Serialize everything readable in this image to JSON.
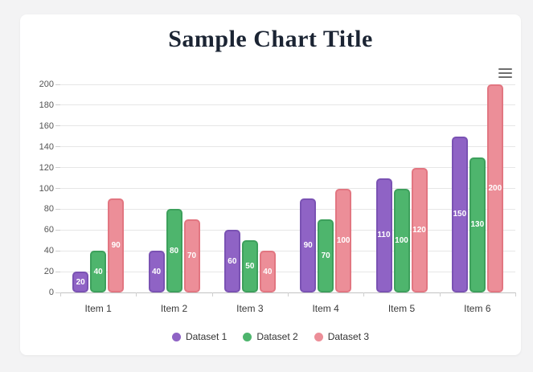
{
  "page": {
    "background": "#f3f3f4",
    "card_background": "#ffffff"
  },
  "header": {
    "title": "Sample Chart Title",
    "title_color": "#1b2433"
  },
  "menu": {
    "icon": "hamburger-menu-icon"
  },
  "chart_data": {
    "type": "bar",
    "title": "Sample Chart Title",
    "categories": [
      "Item 1",
      "Item 2",
      "Item 3",
      "Item 4",
      "Item 5",
      "Item 6"
    ],
    "series": [
      {
        "name": "Dataset 1",
        "values": [
          20,
          40,
          60,
          90,
          110,
          150
        ],
        "fill": "#8f63c5",
        "border": "#7a52b3"
      },
      {
        "name": "Dataset 2",
        "values": [
          40,
          80,
          50,
          70,
          100,
          130
        ],
        "fill": "#4eb56d",
        "border": "#3da05c"
      },
      {
        "name": "Dataset 3",
        "values": [
          90,
          70,
          40,
          100,
          120,
          200
        ],
        "fill": "#ec8e98",
        "border": "#e27681"
      }
    ],
    "xlabel": "",
    "ylabel": "",
    "ylim": [
      0,
      200
    ],
    "yticks": [
      0,
      20,
      40,
      60,
      80,
      100,
      120,
      140,
      160,
      180,
      200
    ],
    "grid": true,
    "legend_position": "bottom",
    "value_labels": {
      "visible": true,
      "color": "#ffffff",
      "position": "center"
    }
  }
}
